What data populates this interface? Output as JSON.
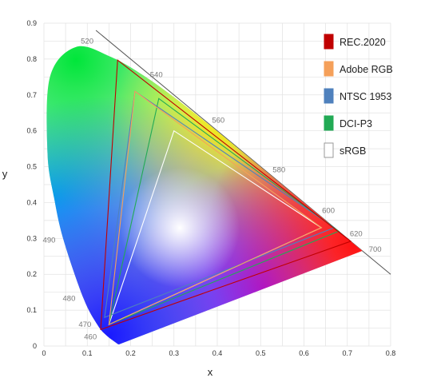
{
  "chart_data": {
    "type": "scatter",
    "title": "",
    "xlabel": "x",
    "ylabel": "y",
    "xlim": [
      0,
      0.8
    ],
    "ylim": [
      0,
      0.9
    ],
    "x_ticks": [
      "0",
      "0.1",
      "0.2",
      "0.3",
      "0.4",
      "0.5",
      "0.6",
      "0.7",
      "0.8"
    ],
    "y_ticks": [
      "0",
      "0.1",
      "0.2",
      "0.3",
      "0.4",
      "0.5",
      "0.6",
      "0.7",
      "0.8",
      "0.9"
    ],
    "grid": true,
    "legend_position": "top-right",
    "spectral_locus": [
      [
        0.1741,
        0.005
      ],
      [
        0.1714,
        0.0051
      ],
      [
        0.1644,
        0.0109
      ],
      [
        0.144,
        0.0297
      ],
      [
        0.1241,
        0.0578
      ],
      [
        0.0913,
        0.1327
      ],
      [
        0.0454,
        0.295
      ],
      [
        0.0235,
        0.4127
      ],
      [
        0.0082,
        0.5384
      ],
      [
        0.0139,
        0.7502
      ],
      [
        0.0743,
        0.8338
      ],
      [
        0.1547,
        0.8059
      ],
      [
        0.2296,
        0.7543
      ],
      [
        0.3016,
        0.6923
      ],
      [
        0.3731,
        0.6245
      ],
      [
        0.4441,
        0.5547
      ],
      [
        0.5125,
        0.4866
      ],
      [
        0.5752,
        0.4242
      ],
      [
        0.627,
        0.3725
      ],
      [
        0.6658,
        0.334
      ],
      [
        0.6915,
        0.3083
      ],
      [
        0.7079,
        0.292
      ],
      [
        0.7347,
        0.2653
      ]
    ],
    "wavelength_labels": [
      {
        "label": "460",
        "x": 0.144,
        "y": 0.03
      },
      {
        "label": "470",
        "x": 0.124,
        "y": 0.058
      },
      {
        "label": "480",
        "x": 0.091,
        "y": 0.133
      },
      {
        "label": "490",
        "x": 0.045,
        "y": 0.295
      },
      {
        "label": "520",
        "x": 0.074,
        "y": 0.834
      },
      {
        "label": "540",
        "x": 0.23,
        "y": 0.754
      },
      {
        "label": "560",
        "x": 0.373,
        "y": 0.625
      },
      {
        "label": "580",
        "x": 0.513,
        "y": 0.487
      },
      {
        "label": "600",
        "x": 0.627,
        "y": 0.373
      },
      {
        "label": "620",
        "x": 0.691,
        "y": 0.308
      },
      {
        "label": "700",
        "x": 0.735,
        "y": 0.265
      }
    ],
    "series": [
      {
        "name": "REC.2020",
        "color": "#c00000",
        "points": [
          [
            0.708,
            0.292
          ],
          [
            0.17,
            0.797
          ],
          [
            0.131,
            0.046
          ]
        ]
      },
      {
        "name": "Adobe RGB",
        "color": "#f5a05a",
        "points": [
          [
            0.64,
            0.33
          ],
          [
            0.21,
            0.71
          ],
          [
            0.15,
            0.06
          ]
        ]
      },
      {
        "name": "NTSC 1953",
        "color": "#4f81bd",
        "points": [
          [
            0.67,
            0.33
          ],
          [
            0.21,
            0.71
          ],
          [
            0.14,
            0.08
          ]
        ]
      },
      {
        "name": "DCI-P3",
        "color": "#22aa55",
        "points": [
          [
            0.68,
            0.32
          ],
          [
            0.265,
            0.69
          ],
          [
            0.15,
            0.06
          ]
        ]
      },
      {
        "name": "sRGB",
        "color": "#ffffff",
        "points": [
          [
            0.64,
            0.33
          ],
          [
            0.3,
            0.6
          ],
          [
            0.15,
            0.06
          ]
        ]
      }
    ]
  }
}
